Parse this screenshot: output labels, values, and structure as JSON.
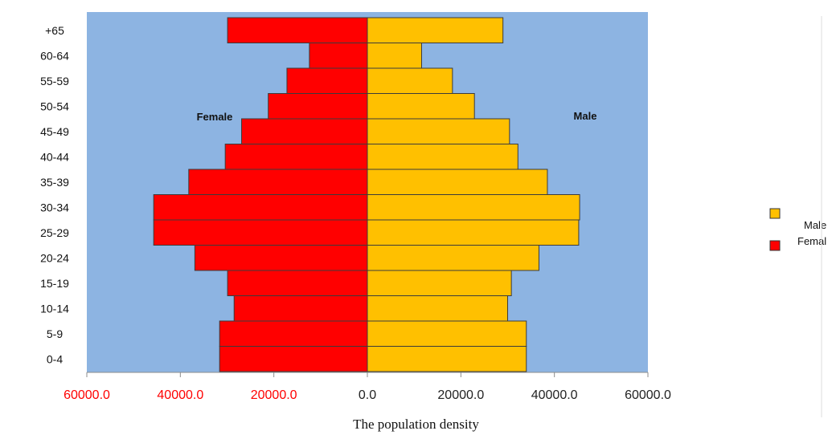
{
  "chart_data": {
    "type": "bar",
    "orientation": "horizontal",
    "subtype": "population-pyramid",
    "categories": [
      "0-4",
      "5-9",
      "10-14",
      "15-19",
      "20-24",
      "25-29",
      "30-34",
      "35-39",
      "40-44",
      "45-49",
      "50-54",
      "55-59",
      "60-64",
      "+65"
    ],
    "series": [
      {
        "name": "Male",
        "color": "#FFC000",
        "values": [
          34000,
          34000,
          30000,
          30800,
          36700,
          45200,
          45400,
          38500,
          32200,
          30400,
          22900,
          18200,
          11600,
          29000
        ]
      },
      {
        "name": "Female",
        "color": "#FF0000",
        "values": [
          31600,
          31600,
          28500,
          29900,
          36900,
          45700,
          45700,
          38200,
          30400,
          26900,
          21200,
          17200,
          12400,
          29900
        ]
      }
    ],
    "xlim": [
      -60000,
      60000
    ],
    "x_ticks": [
      {
        "value": -60000,
        "label": "60000.0"
      },
      {
        "value": -40000,
        "label": "40000.0"
      },
      {
        "value": -20000,
        "label": "20000.0"
      },
      {
        "value": 0,
        "label": "0.0"
      },
      {
        "value": 20000,
        "label": "20000.0"
      },
      {
        "value": 40000,
        "label": "40000.0"
      },
      {
        "value": 60000,
        "label": "60000.0"
      }
    ],
    "negative_tick_color": "#FF0000",
    "positive_tick_color": "#222222",
    "plot_background": "#8DB4E2",
    "annotations": {
      "left": "Female",
      "right": "Male"
    },
    "legend": {
      "position": "right",
      "entries": [
        {
          "label": "Male",
          "color": "#FFC000"
        },
        {
          "label": "Femal",
          "color": "#FF0000"
        }
      ]
    },
    "caption": "The population density",
    "grid": false
  }
}
